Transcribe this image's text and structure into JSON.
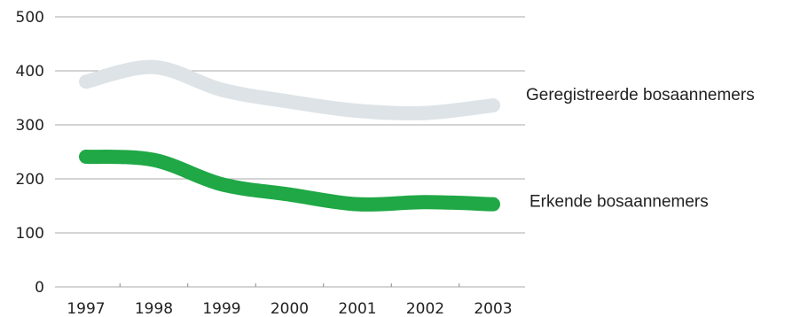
{
  "chart_data": {
    "type": "line",
    "title": "",
    "xlabel": "",
    "ylabel": "",
    "x": [
      "1997",
      "1998",
      "1999",
      "2000",
      "2001",
      "2002",
      "2003"
    ],
    "yticks": [
      "0",
      "100",
      "200",
      "300",
      "400",
      "500"
    ],
    "ylim": [
      0,
      500
    ],
    "grid": true,
    "series": [
      {
        "name": "Geregistreerde bosaannemers",
        "values": [
          380,
          407,
          365,
          343,
          326,
          322,
          336
        ],
        "color": "#dde3e6"
      },
      {
        "name": "Erkende bosaannemers",
        "values": [
          241,
          235,
          190,
          171,
          153,
          157,
          153
        ],
        "color": "#1fa845"
      }
    ]
  }
}
